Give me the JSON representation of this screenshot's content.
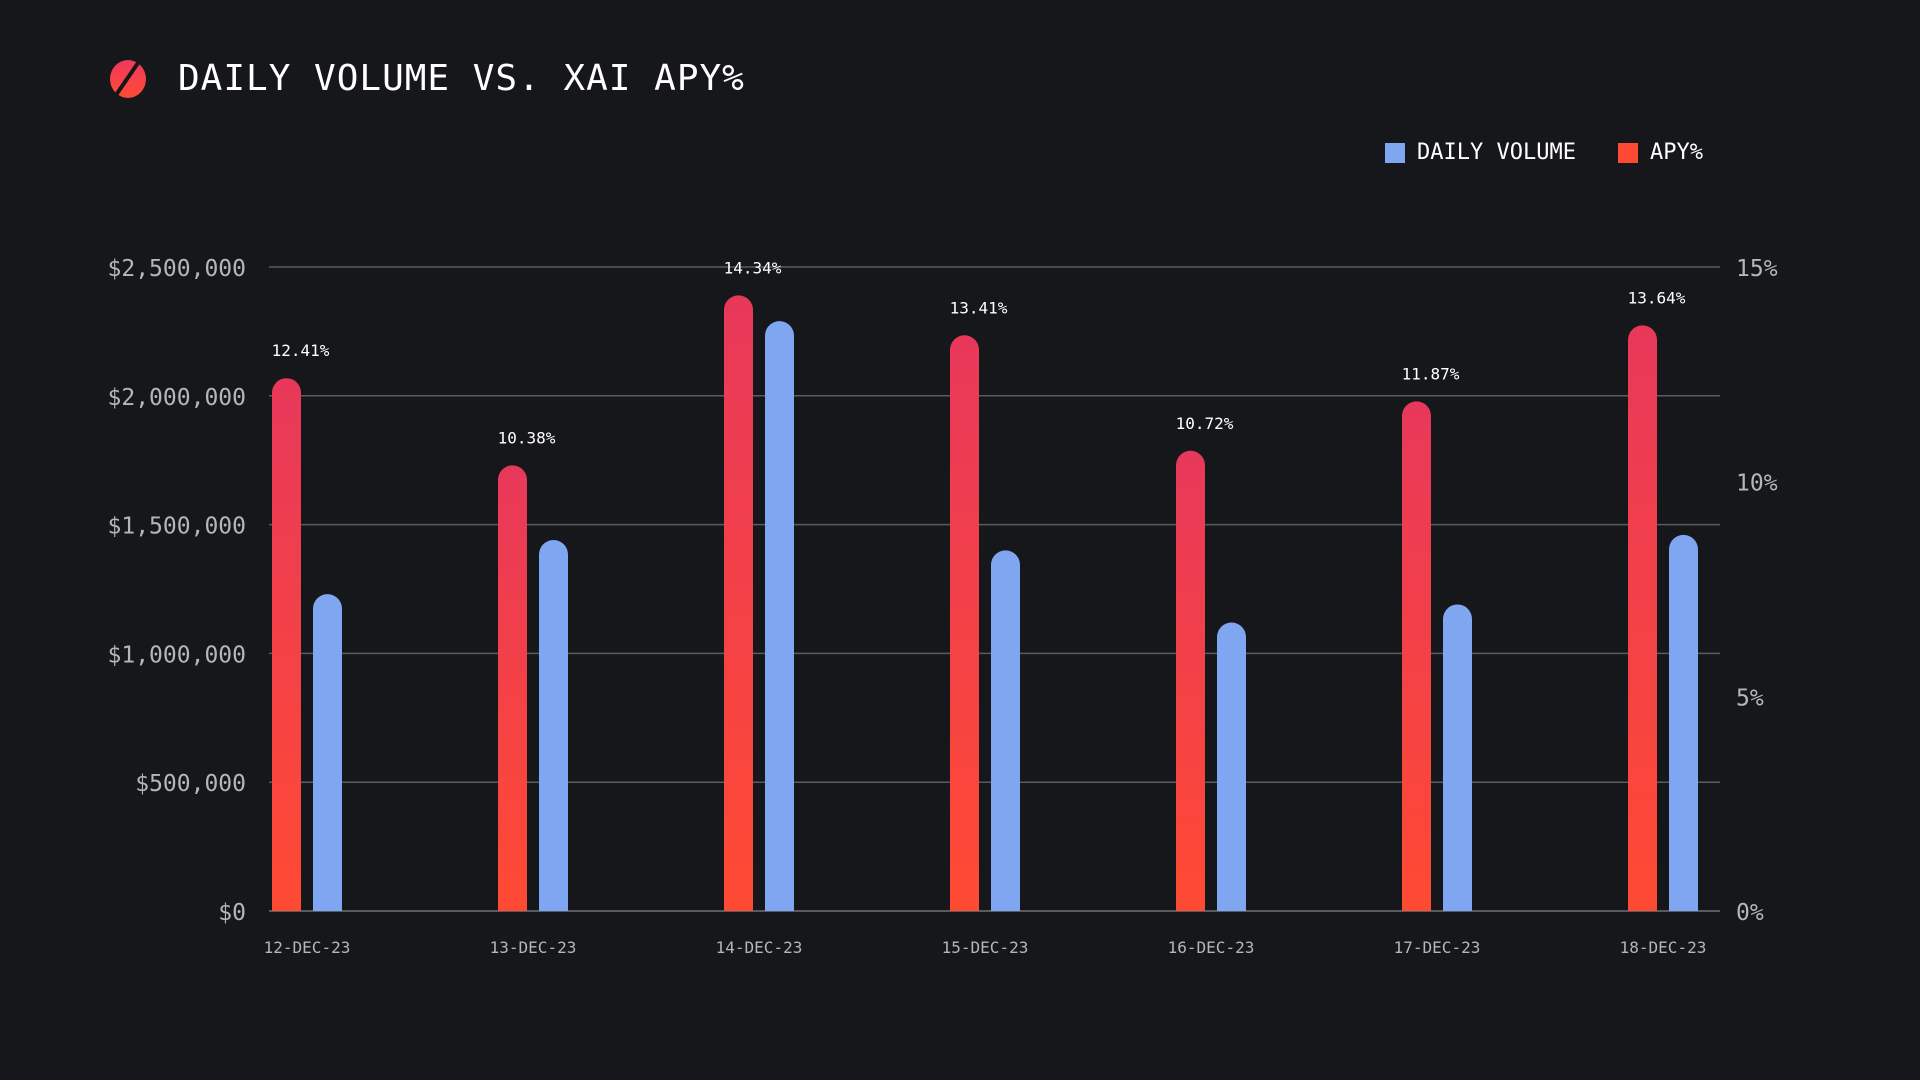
{
  "colors": {
    "background": "#16171b",
    "volume": "#7fa6f0",
    "apy_top": "#e8385a",
    "apy_bottom": "#ff4a33",
    "grid": "#5a5b60",
    "axis_text": "#b5b6ba"
  },
  "chart_data": {
    "type": "bar",
    "title": "DAILY VOLUME VS. XAI APY%",
    "categories": [
      "12-DEC-23",
      "13-DEC-23",
      "14-DEC-23",
      "15-DEC-23",
      "16-DEC-23",
      "17-DEC-23",
      "18-DEC-23"
    ],
    "series": [
      {
        "name": "APY%",
        "axis": "right",
        "values": [
          12.41,
          10.38,
          14.34,
          13.41,
          10.72,
          11.87,
          13.64
        ],
        "labels": [
          "12.41%",
          "10.38%",
          "14.34%",
          "13.41%",
          "10.72%",
          "11.87%",
          "13.64%"
        ]
      },
      {
        "name": "DAILY VOLUME",
        "axis": "left",
        "values": [
          1230000,
          1440000,
          2290000,
          1400000,
          1120000,
          1190000,
          1460000
        ]
      }
    ],
    "left_axis": {
      "ylim": [
        0,
        2500000
      ],
      "ticks": [
        0,
        500000,
        1000000,
        1500000,
        2000000,
        2500000
      ],
      "tick_labels": [
        "$0",
        "$500,000",
        "$1,000,000",
        "$1,500,000",
        "$2,000,000",
        "$2,500,000"
      ]
    },
    "right_axis": {
      "ylim": [
        0,
        15
      ],
      "ticks": [
        0,
        5,
        10,
        15
      ],
      "tick_labels": [
        "0%",
        "5%",
        "10%",
        "15%"
      ]
    },
    "legend": {
      "placement": "top-right",
      "entries": [
        "DAILY VOLUME",
        "APY%"
      ]
    },
    "grid": true
  }
}
